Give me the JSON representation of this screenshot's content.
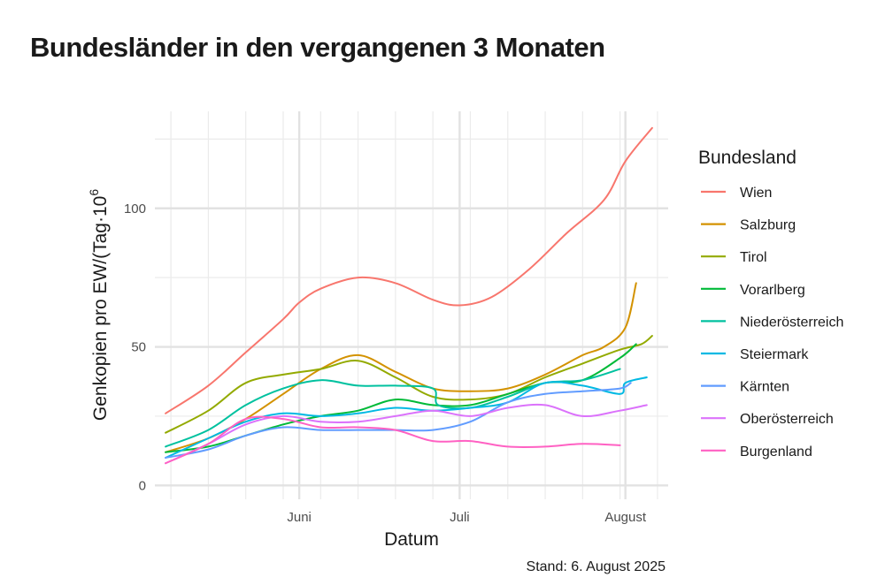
{
  "chart_data": {
    "type": "line",
    "title": "Bundesländer in den vergangenen 3 Monaten",
    "xlabel": "Datum",
    "ylabel": "Genkopien pro EW/(Tag·10",
    "ylabel_superscript": "6",
    "ylim": [
      -5,
      135
    ],
    "xlim": [
      "2025-05-05",
      "2025-08-09"
    ],
    "yticks": [
      0,
      50,
      100
    ],
    "ytick_labels": [
      "0",
      "50",
      "100"
    ],
    "xticks": [
      "2025-06-01",
      "2025-07-01",
      "2025-08-01"
    ],
    "xtick_labels": [
      "Juni",
      "Juli",
      "August"
    ],
    "minor_xticks": [
      "2025-05-08",
      "2025-05-15",
      "2025-05-22",
      "2025-05-29",
      "2025-06-05",
      "2025-06-12",
      "2025-06-19",
      "2025-06-26",
      "2025-07-03",
      "2025-07-10",
      "2025-07-17",
      "2025-07-24",
      "2025-07-31",
      "2025-08-07"
    ],
    "legend_title": "Bundesland",
    "legend_position": "right",
    "caption": "Stand: 6. August 2025",
    "series": [
      {
        "name": "Wien",
        "color": "#F8766D",
        "x": [
          "2025-05-07",
          "2025-05-15",
          "2025-05-22",
          "2025-05-29",
          "2025-06-01",
          "2025-06-05",
          "2025-06-12",
          "2025-06-19",
          "2025-06-26",
          "2025-07-01",
          "2025-07-07",
          "2025-07-14",
          "2025-07-21",
          "2025-07-28",
          "2025-08-01",
          "2025-08-06"
        ],
        "values": [
          26,
          36,
          48,
          60,
          66,
          71,
          75,
          73,
          67,
          65,
          68,
          78,
          91,
          103,
          117,
          129
        ]
      },
      {
        "name": "Salzburg",
        "color": "#D39200",
        "x": [
          "2025-05-07",
          "2025-05-15",
          "2025-05-22",
          "2025-05-29",
          "2025-06-05",
          "2025-06-12",
          "2025-06-19",
          "2025-06-26",
          "2025-07-03",
          "2025-07-10",
          "2025-07-17",
          "2025-07-24",
          "2025-07-28",
          "2025-08-01",
          "2025-08-03"
        ],
        "values": [
          12,
          17,
          24,
          33,
          42,
          47,
          41,
          35,
          34,
          35,
          40,
          47,
          50,
          57,
          73
        ]
      },
      {
        "name": "Tirol",
        "color": "#93AA00",
        "x": [
          "2025-05-07",
          "2025-05-15",
          "2025-05-22",
          "2025-05-29",
          "2025-06-05",
          "2025-06-12",
          "2025-06-19",
          "2025-06-26",
          "2025-07-03",
          "2025-07-10",
          "2025-07-17",
          "2025-07-24",
          "2025-07-31",
          "2025-08-04",
          "2025-08-06"
        ],
        "values": [
          19,
          27,
          37,
          40,
          42,
          45,
          39,
          32,
          31,
          33,
          39,
          44,
          49,
          51,
          54
        ]
      },
      {
        "name": "Vorarlberg",
        "color": "#00BA38",
        "x": [
          "2025-05-07",
          "2025-05-15",
          "2025-05-22",
          "2025-05-29",
          "2025-06-05",
          "2025-06-12",
          "2025-06-19",
          "2025-06-26",
          "2025-07-03",
          "2025-07-10",
          "2025-07-17",
          "2025-07-24",
          "2025-07-31",
          "2025-08-03"
        ],
        "values": [
          12,
          14,
          18,
          22,
          25,
          27,
          31,
          29,
          29,
          33,
          37,
          38,
          46,
          51
        ]
      },
      {
        "name": "Niederösterreich",
        "color": "#00C19F",
        "x": [
          "2025-05-07",
          "2025-05-15",
          "2025-05-22",
          "2025-05-29",
          "2025-06-05",
          "2025-06-12",
          "2025-06-19",
          "2025-06-26",
          "2025-06-27",
          "2025-07-03",
          "2025-07-10",
          "2025-07-17",
          "2025-07-24",
          "2025-07-31"
        ],
        "values": [
          14,
          20,
          29,
          35,
          38,
          36,
          36,
          35,
          29,
          28,
          32,
          37,
          38,
          42
        ]
      },
      {
        "name": "Steiermark",
        "color": "#00B9E3",
        "x": [
          "2025-05-07",
          "2025-05-15",
          "2025-05-22",
          "2025-05-29",
          "2025-06-05",
          "2025-06-12",
          "2025-06-19",
          "2025-06-26",
          "2025-07-03",
          "2025-07-10",
          "2025-07-17",
          "2025-07-24",
          "2025-07-31",
          "2025-08-01",
          "2025-08-05"
        ],
        "values": [
          10,
          17,
          23,
          26,
          25,
          26,
          28,
          27,
          28,
          30,
          37,
          36,
          33,
          37,
          39
        ]
      },
      {
        "name": "Kärnten",
        "color": "#619CFF",
        "x": [
          "2025-05-07",
          "2025-05-15",
          "2025-05-22",
          "2025-05-29",
          "2025-06-05",
          "2025-06-12",
          "2025-06-19",
          "2025-06-26",
          "2025-07-03",
          "2025-07-10",
          "2025-07-17",
          "2025-07-24",
          "2025-07-31",
          "2025-08-02"
        ],
        "values": [
          10,
          13,
          18,
          21,
          20,
          20,
          20,
          20,
          23,
          30,
          33,
          34,
          35,
          37
        ]
      },
      {
        "name": "Oberösterreich",
        "color": "#DB72FB",
        "x": [
          "2025-05-07",
          "2025-05-15",
          "2025-05-22",
          "2025-05-29",
          "2025-06-05",
          "2025-06-12",
          "2025-06-19",
          "2025-06-26",
          "2025-07-03",
          "2025-07-10",
          "2025-07-17",
          "2025-07-24",
          "2025-07-31",
          "2025-08-05"
        ],
        "values": [
          8,
          15,
          22,
          25,
          23,
          23,
          25,
          27,
          25,
          28,
          29,
          25,
          27,
          29
        ]
      },
      {
        "name": "Burgenland",
        "color": "#FF61C3",
        "x": [
          "2025-05-07",
          "2025-05-15",
          "2025-05-22",
          "2025-05-29",
          "2025-06-05",
          "2025-06-12",
          "2025-06-19",
          "2025-06-26",
          "2025-07-03",
          "2025-07-10",
          "2025-07-17",
          "2025-07-24",
          "2025-07-31"
        ],
        "values": [
          8,
          15,
          24,
          24,
          21,
          21,
          20,
          16,
          16,
          14,
          14,
          15,
          14.5
        ]
      }
    ]
  }
}
